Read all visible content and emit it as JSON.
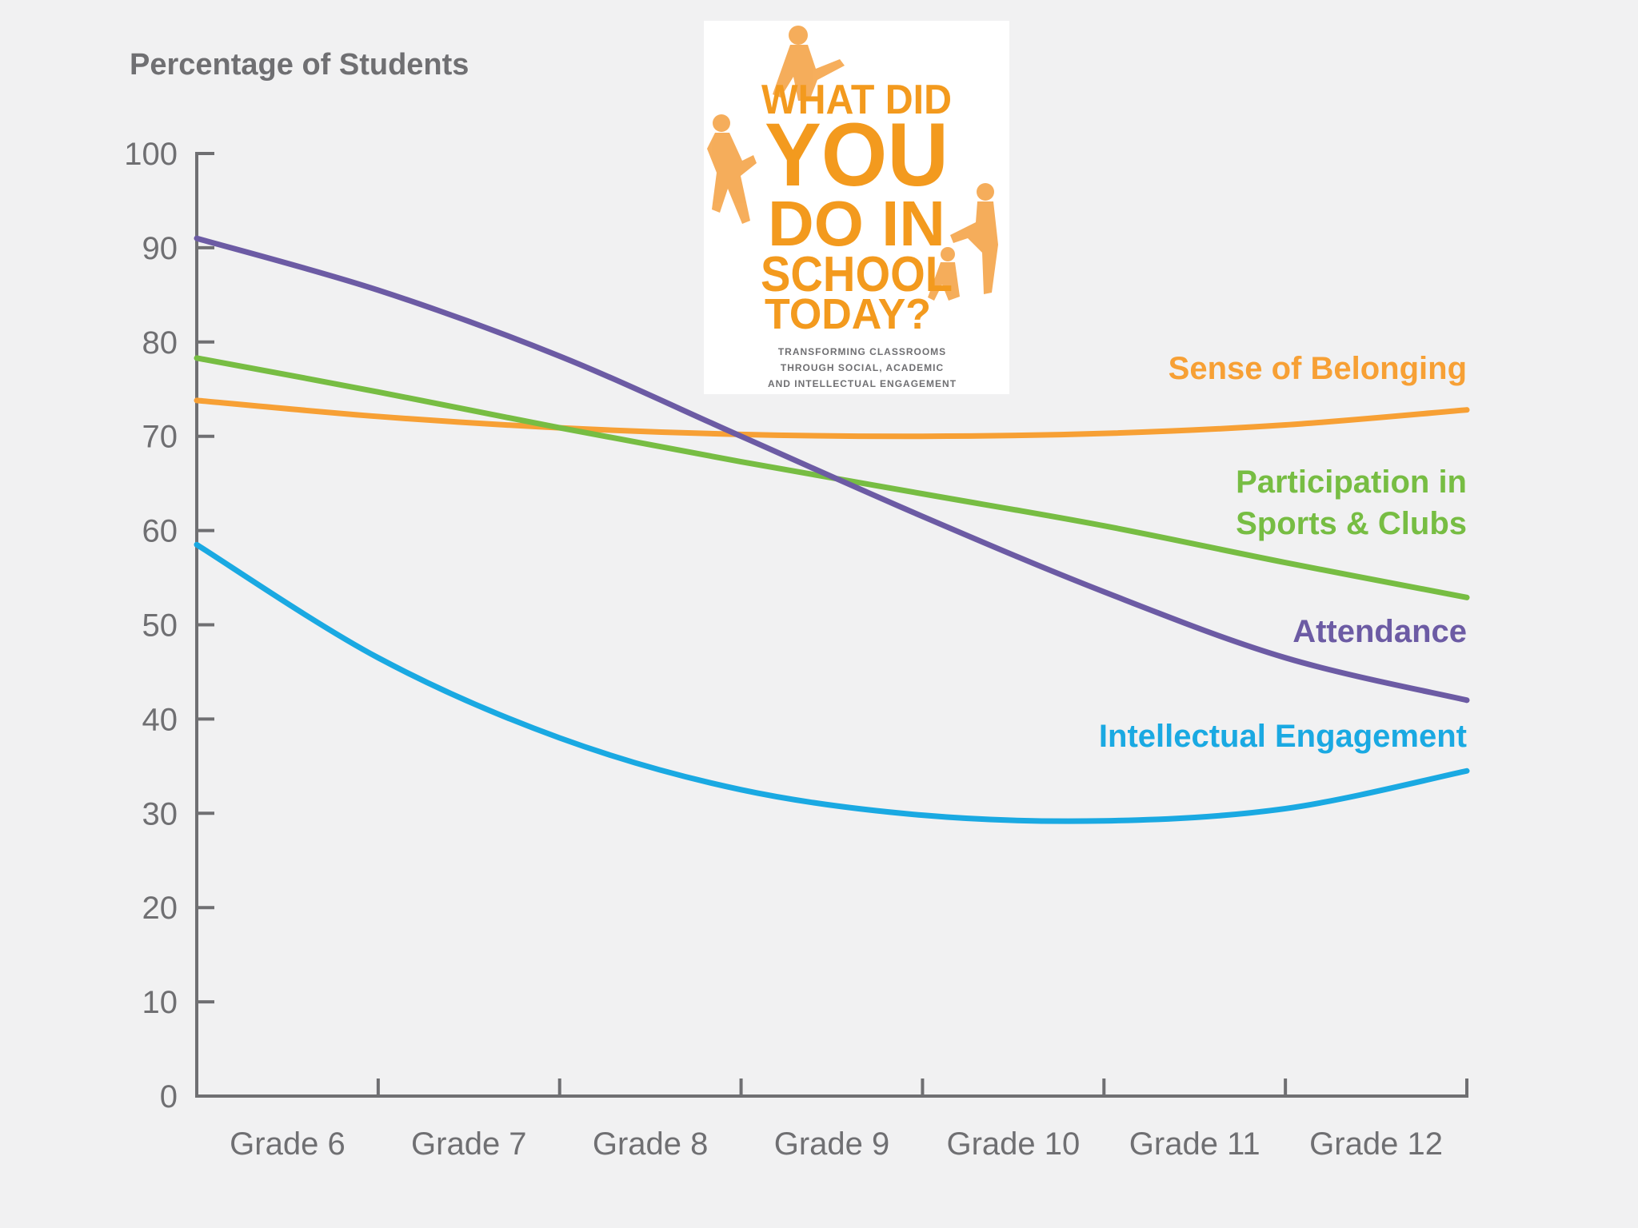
{
  "colors": {
    "background": "#f1f1f2",
    "axis": "#6f6f72",
    "sense_of_belonging": "#f7a035",
    "participation": "#77bd43",
    "attendance": "#6c5ba4",
    "intellectual_engagement": "#1aa9e2",
    "cover_orange": "#f39a1e"
  },
  "book_cover": {
    "title_lines": [
      "WHAT DID",
      "YOU",
      "DO IN",
      "SCHOOL",
      "TODAY?"
    ],
    "subtitle_lines": [
      "TRANSFORMING CLASSROOMS",
      "THROUGH SOCIAL, ACADEMIC",
      "AND INTELLECTUAL ENGAGEMENT"
    ],
    "illustration": "climbing-figures"
  },
  "chart_data": {
    "type": "line",
    "title": "",
    "ylabel": "Percentage of Students",
    "xlabel": "",
    "ylim": [
      0,
      100
    ],
    "yticks": [
      0,
      10,
      20,
      30,
      40,
      50,
      60,
      70,
      80,
      90,
      100
    ],
    "x_range": [
      0,
      7
    ],
    "categories": [
      "Grade 6",
      "Grade 7",
      "Grade 8",
      "Grade 9",
      "Grade 10",
      "Grade 11",
      "Grade 12"
    ],
    "grid": false,
    "series": [
      {
        "name": "Sense of Belonging",
        "color": "#f7a035",
        "label_lines": [
          "Sense of Belonging"
        ],
        "x": [
          0,
          1,
          2,
          3,
          4,
          5,
          6,
          7
        ],
        "values": [
          73.8,
          72.1,
          70.9,
          70.2,
          70.0,
          70.3,
          71.2,
          72.8
        ]
      },
      {
        "name": "Participation in Sports & Clubs",
        "color": "#77bd43",
        "label_lines": [
          "Participation in",
          "Sports & Clubs"
        ],
        "x": [
          0,
          1,
          2,
          3,
          4,
          5,
          6,
          7
        ],
        "values": [
          78.3,
          74.7,
          70.9,
          67.3,
          63.9,
          60.5,
          56.6,
          52.9
        ]
      },
      {
        "name": "Attendance",
        "color": "#6c5ba4",
        "label_lines": [
          "Attendance"
        ],
        "x": [
          0,
          1,
          2,
          3,
          4,
          5,
          6,
          7
        ],
        "values": [
          91.0,
          85.5,
          78.5,
          70.0,
          61.5,
          53.5,
          46.5,
          42.0
        ]
      },
      {
        "name": "Intellectual Engagement",
        "color": "#1aa9e2",
        "label_lines": [
          "Intellectual Engagement"
        ],
        "x": [
          0,
          1,
          2,
          3,
          4,
          5,
          6,
          7
        ],
        "values": [
          58.5,
          46.5,
          38.0,
          32.5,
          29.8,
          29.2,
          30.5,
          34.5
        ]
      }
    ]
  }
}
